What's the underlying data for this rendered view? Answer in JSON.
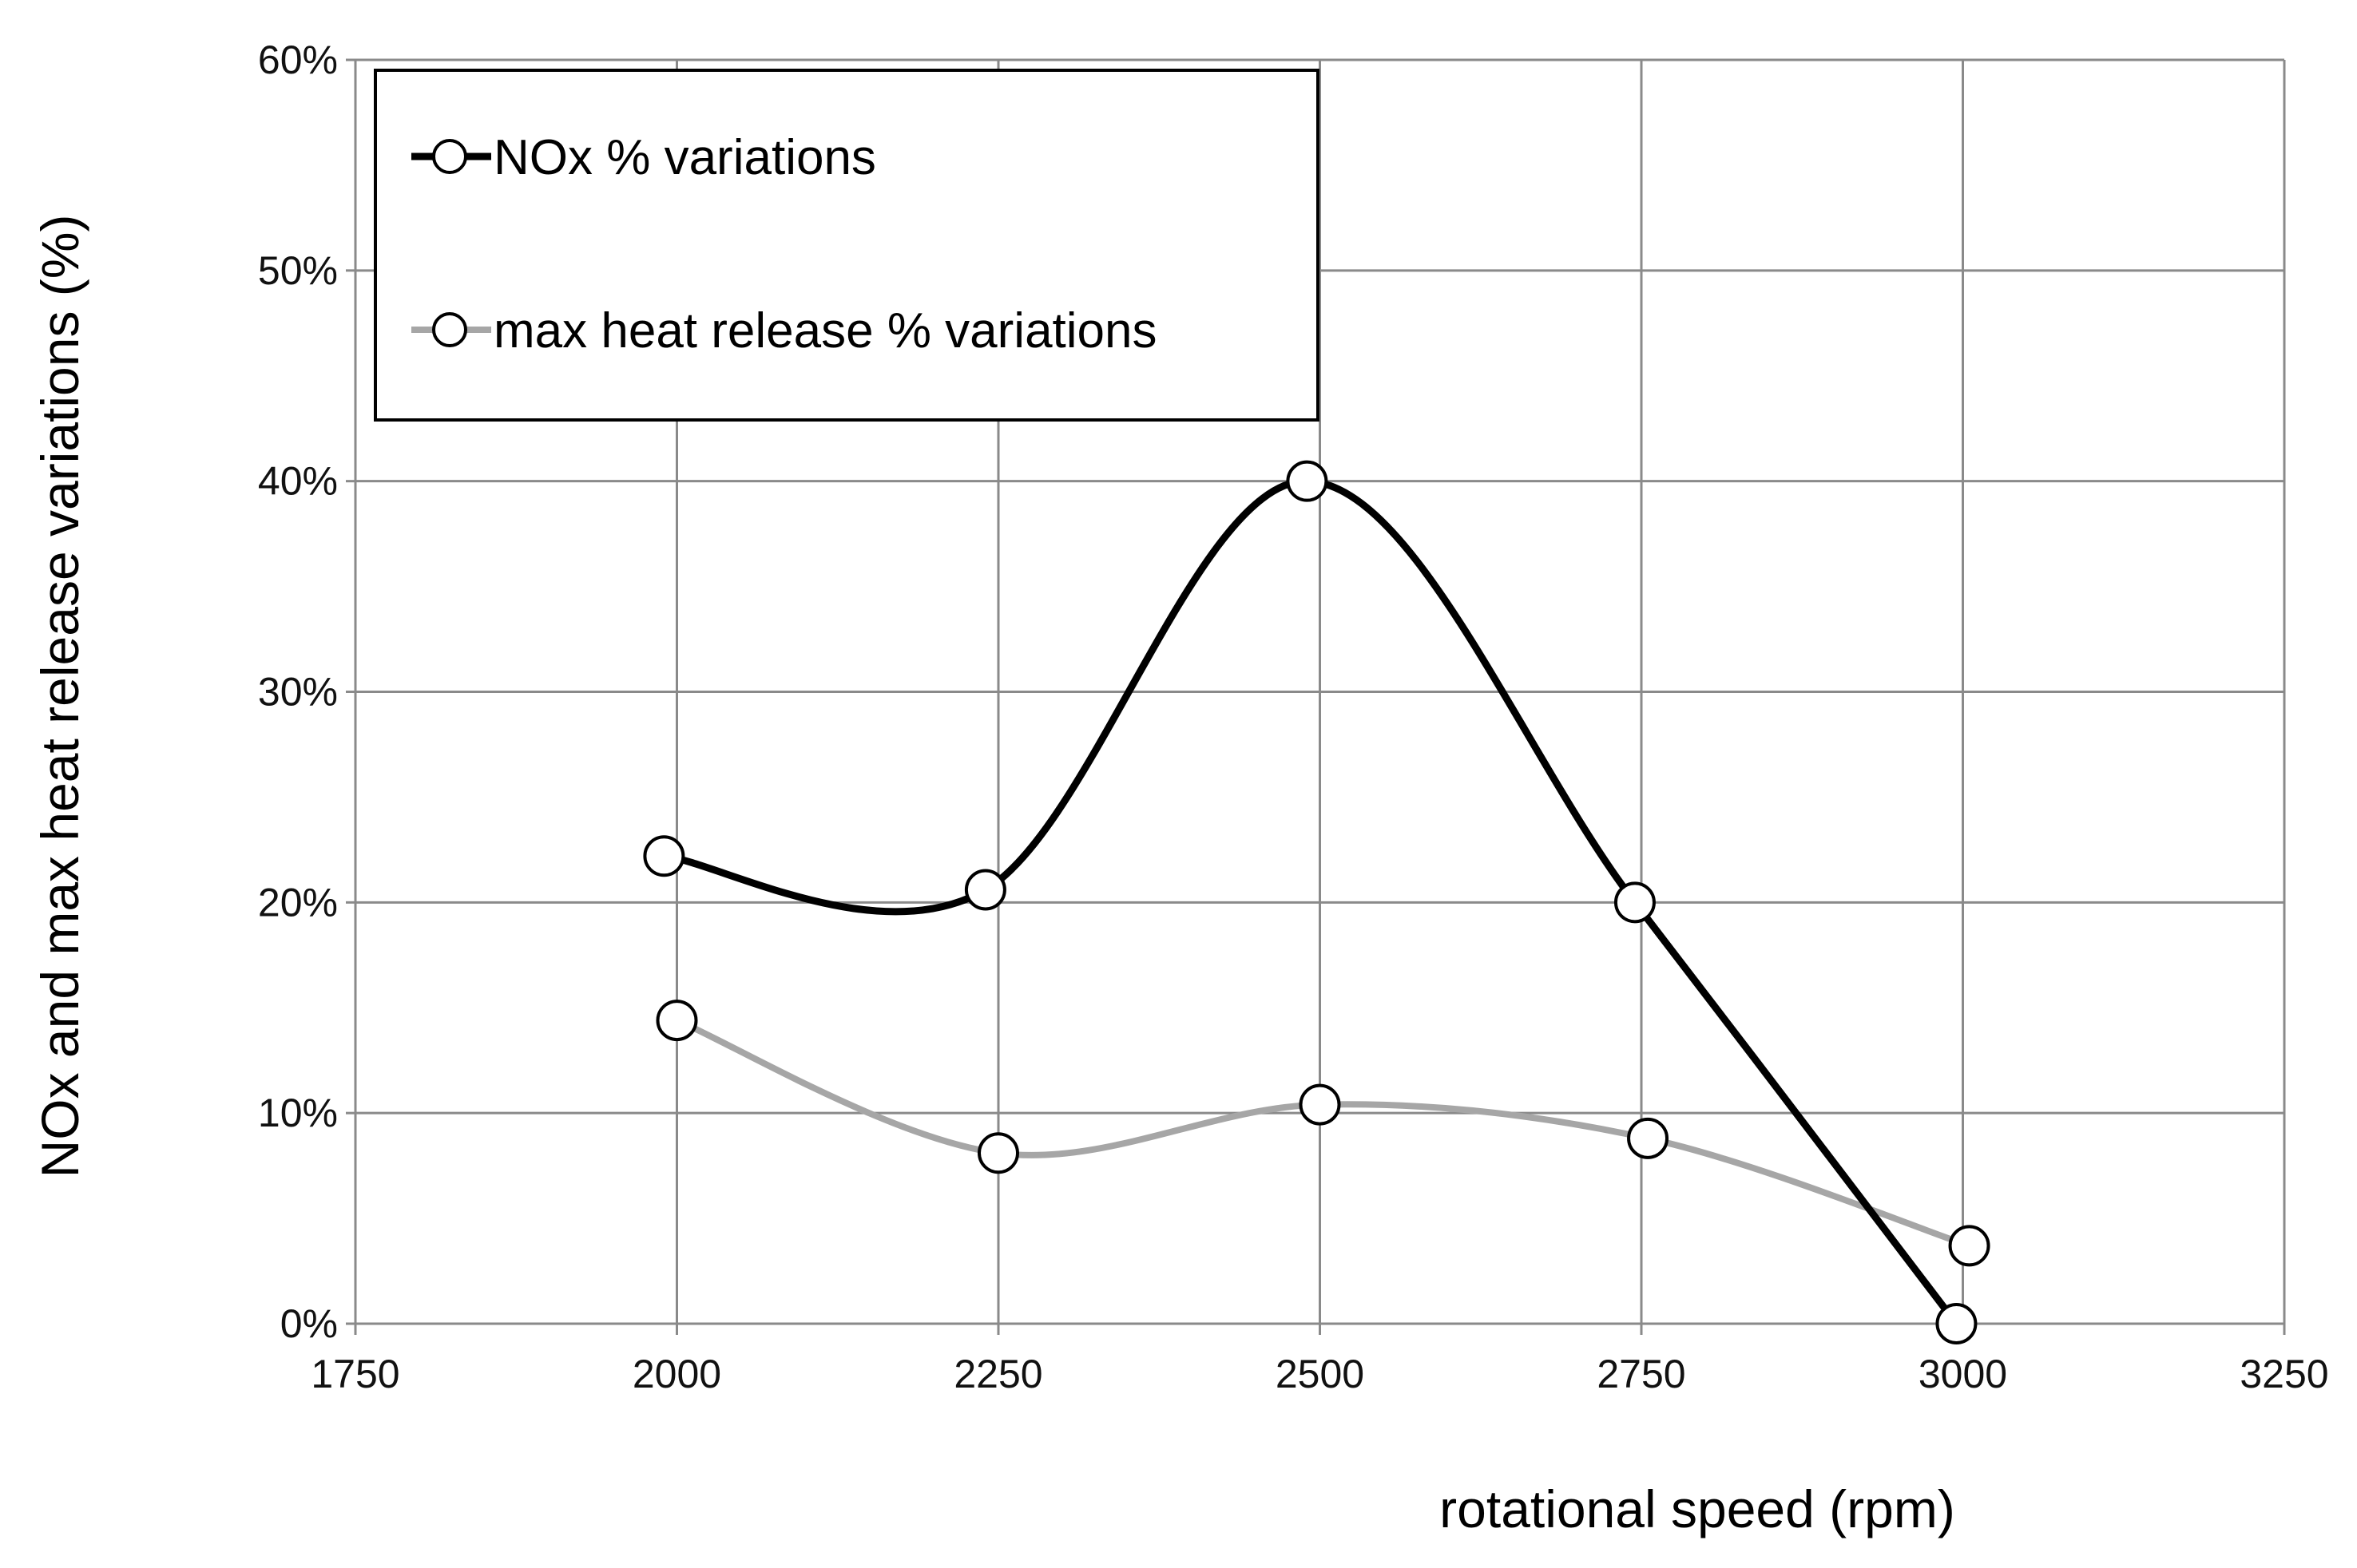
{
  "chart_data": {
    "type": "line",
    "xlabel": "rotational speed (rpm)",
    "ylabel": "NOx and max heat release variations (%)",
    "xlim": [
      1750,
      3250
    ],
    "ylim": [
      0,
      60
    ],
    "x_ticks": [
      1750,
      2000,
      2250,
      2500,
      2750,
      3000,
      3250
    ],
    "x_tick_labels": [
      "1750",
      "2000",
      "2250",
      "2500",
      "2750",
      "3000",
      "3250"
    ],
    "y_ticks": [
      0,
      10,
      20,
      30,
      40,
      50,
      60
    ],
    "y_tick_labels": [
      "0%",
      "10%",
      "20%",
      "30%",
      "40%",
      "50%",
      "60%"
    ],
    "grid": true,
    "smooth": true,
    "legend_position": "top-left",
    "series": [
      {
        "name": "NOx % variations",
        "color": "#000000",
        "marker": "open-circle",
        "x": [
          1990,
          2240,
          2490,
          2745,
          2995
        ],
        "y": [
          22.2,
          20.6,
          40.0,
          20.0,
          0.0
        ]
      },
      {
        "name": "max heat release % variations",
        "color": "#a6a6a6",
        "marker": "open-circle",
        "x": [
          2000,
          2250,
          2500,
          2755,
          3005
        ],
        "y": [
          14.4,
          8.1,
          10.4,
          8.8,
          3.7
        ]
      }
    ]
  }
}
